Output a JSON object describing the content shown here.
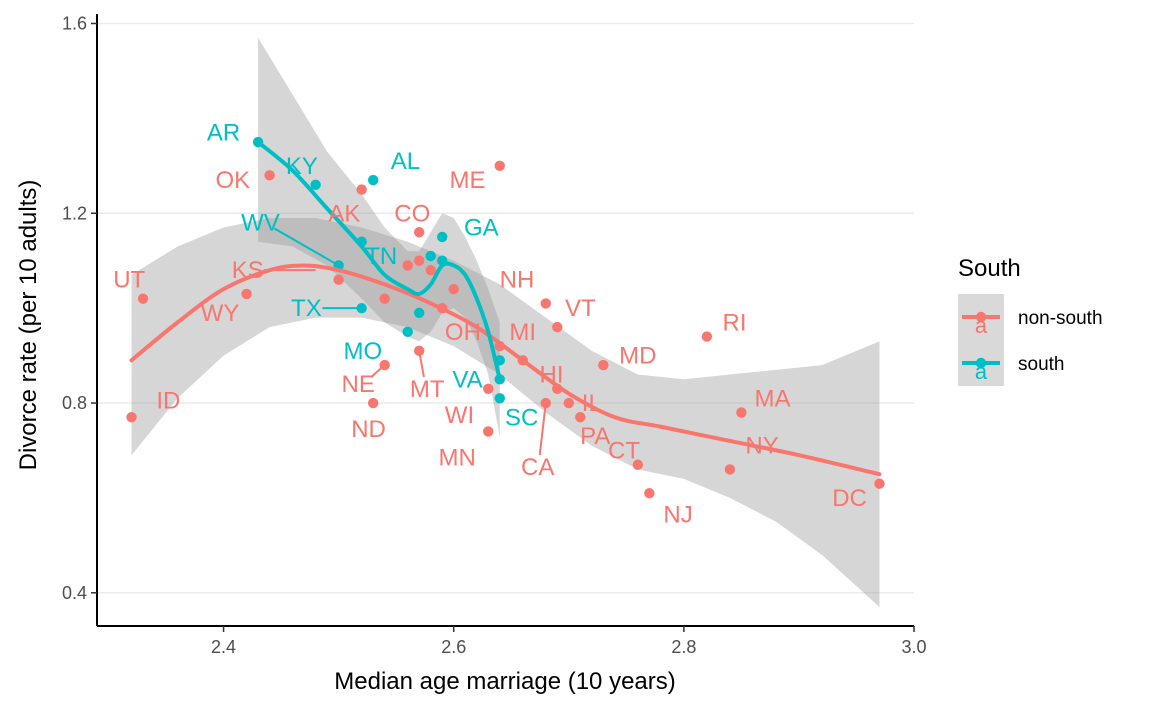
{
  "chart_data": {
    "type": "scatter",
    "title": "",
    "xlabel": "Median age marriage (10 years)",
    "ylabel": "Divorce rate (per 10 adults)",
    "xlim": [
      2.29,
      3.0
    ],
    "ylim": [
      0.33,
      1.62
    ],
    "x_ticks": [
      2.4,
      2.6,
      2.8,
      3.0
    ],
    "x_tick_labels": [
      "2.4",
      "2.6",
      "2.8",
      "3.0"
    ],
    "y_ticks": [
      0.4,
      0.8,
      1.2,
      1.6
    ],
    "y_tick_labels": [
      "0.4",
      "0.8",
      "1.2",
      "1.6"
    ],
    "grid": "horizontal",
    "legend": {
      "title": "South",
      "placement": "right",
      "glyph_text": "a",
      "entries": [
        {
          "label": "non-south",
          "color": "#F8766D"
        },
        {
          "label": "south",
          "color": "#00BFC4"
        }
      ]
    },
    "series": [
      {
        "name": "non-south",
        "color": "#F8766D",
        "points": [
          {
            "x": 2.32,
            "y": 0.77
          },
          {
            "x": 2.33,
            "y": 1.02
          },
          {
            "x": 2.42,
            "y": 1.03
          },
          {
            "x": 2.44,
            "y": 1.28
          },
          {
            "x": 2.5,
            "y": 1.06
          },
          {
            "x": 2.52,
            "y": 1.25
          },
          {
            "x": 2.53,
            "y": 0.8
          },
          {
            "x": 2.54,
            "y": 0.88
          },
          {
            "x": 2.54,
            "y": 1.02
          },
          {
            "x": 2.56,
            "y": 1.09
          },
          {
            "x": 2.57,
            "y": 1.16
          },
          {
            "x": 2.57,
            "y": 1.1
          },
          {
            "x": 2.57,
            "y": 0.91
          },
          {
            "x": 2.58,
            "y": 1.08
          },
          {
            "x": 2.59,
            "y": 1.0
          },
          {
            "x": 2.6,
            "y": 1.04
          },
          {
            "x": 2.63,
            "y": 0.74
          },
          {
            "x": 2.63,
            "y": 0.83
          },
          {
            "x": 2.64,
            "y": 0.92
          },
          {
            "x": 2.64,
            "y": 1.3
          },
          {
            "x": 2.66,
            "y": 0.89
          },
          {
            "x": 2.68,
            "y": 1.01
          },
          {
            "x": 2.68,
            "y": 0.8
          },
          {
            "x": 2.69,
            "y": 0.96
          },
          {
            "x": 2.69,
            "y": 0.83
          },
          {
            "x": 2.7,
            "y": 0.8
          },
          {
            "x": 2.71,
            "y": 0.77
          },
          {
            "x": 2.73,
            "y": 0.88
          },
          {
            "x": 2.76,
            "y": 0.67
          },
          {
            "x": 2.77,
            "y": 0.61
          },
          {
            "x": 2.82,
            "y": 0.94
          },
          {
            "x": 2.84,
            "y": 0.66
          },
          {
            "x": 2.85,
            "y": 0.78
          },
          {
            "x": 2.97,
            "y": 0.63
          }
        ],
        "smooth": [
          {
            "x": 2.32,
            "y": 0.89
          },
          {
            "x": 2.36,
            "y": 0.97
          },
          {
            "x": 2.4,
            "y": 1.04
          },
          {
            "x": 2.44,
            "y": 1.08
          },
          {
            "x": 2.47,
            "y": 1.09
          },
          {
            "x": 2.5,
            "y": 1.08
          },
          {
            "x": 2.54,
            "y": 1.05
          },
          {
            "x": 2.58,
            "y": 1.01
          },
          {
            "x": 2.62,
            "y": 0.96
          },
          {
            "x": 2.66,
            "y": 0.89
          },
          {
            "x": 2.7,
            "y": 0.82
          },
          {
            "x": 2.74,
            "y": 0.77
          },
          {
            "x": 2.78,
            "y": 0.75
          },
          {
            "x": 2.84,
            "y": 0.72
          },
          {
            "x": 2.9,
            "y": 0.69
          },
          {
            "x": 2.97,
            "y": 0.65
          }
        ],
        "band_upper": [
          {
            "x": 2.32,
            "y": 1.07
          },
          {
            "x": 2.36,
            "y": 1.13
          },
          {
            "x": 2.4,
            "y": 1.17
          },
          {
            "x": 2.44,
            "y": 1.19
          },
          {
            "x": 2.48,
            "y": 1.19
          },
          {
            "x": 2.52,
            "y": 1.17
          },
          {
            "x": 2.56,
            "y": 1.14
          },
          {
            "x": 2.6,
            "y": 1.1
          },
          {
            "x": 2.64,
            "y": 1.05
          },
          {
            "x": 2.68,
            "y": 0.98
          },
          {
            "x": 2.72,
            "y": 0.91
          },
          {
            "x": 2.76,
            "y": 0.86
          },
          {
            "x": 2.8,
            "y": 0.85
          },
          {
            "x": 2.84,
            "y": 0.86
          },
          {
            "x": 2.88,
            "y": 0.87
          },
          {
            "x": 2.92,
            "y": 0.88
          },
          {
            "x": 2.97,
            "y": 0.93
          }
        ],
        "band_lower": [
          {
            "x": 2.32,
            "y": 0.69
          },
          {
            "x": 2.36,
            "y": 0.81
          },
          {
            "x": 2.4,
            "y": 0.9
          },
          {
            "x": 2.44,
            "y": 0.96
          },
          {
            "x": 2.48,
            "y": 0.98
          },
          {
            "x": 2.52,
            "y": 0.98
          },
          {
            "x": 2.56,
            "y": 0.96
          },
          {
            "x": 2.6,
            "y": 0.92
          },
          {
            "x": 2.64,
            "y": 0.86
          },
          {
            "x": 2.68,
            "y": 0.78
          },
          {
            "x": 2.72,
            "y": 0.71
          },
          {
            "x": 2.76,
            "y": 0.66
          },
          {
            "x": 2.8,
            "y": 0.64
          },
          {
            "x": 2.84,
            "y": 0.6
          },
          {
            "x": 2.88,
            "y": 0.55
          },
          {
            "x": 2.92,
            "y": 0.48
          },
          {
            "x": 2.97,
            "y": 0.37
          }
        ]
      },
      {
        "name": "south",
        "color": "#00BFC4",
        "points": [
          {
            "x": 2.43,
            "y": 1.35
          },
          {
            "x": 2.48,
            "y": 1.26
          },
          {
            "x": 2.5,
            "y": 1.09
          },
          {
            "x": 2.52,
            "y": 1.14
          },
          {
            "x": 2.52,
            "y": 1.0
          },
          {
            "x": 2.53,
            "y": 1.27
          },
          {
            "x": 2.56,
            "y": 0.95
          },
          {
            "x": 2.57,
            "y": 0.99
          },
          {
            "x": 2.58,
            "y": 1.11
          },
          {
            "x": 2.59,
            "y": 1.15
          },
          {
            "x": 2.59,
            "y": 1.1
          },
          {
            "x": 2.64,
            "y": 0.89
          },
          {
            "x": 2.64,
            "y": 0.85
          },
          {
            "x": 2.64,
            "y": 0.81
          }
        ],
        "smooth": [
          {
            "x": 2.43,
            "y": 1.35
          },
          {
            "x": 2.46,
            "y": 1.29
          },
          {
            "x": 2.49,
            "y": 1.21
          },
          {
            "x": 2.52,
            "y": 1.13
          },
          {
            "x": 2.54,
            "y": 1.07
          },
          {
            "x": 2.56,
            "y": 1.04
          },
          {
            "x": 2.57,
            "y": 1.03
          },
          {
            "x": 2.58,
            "y": 1.05
          },
          {
            "x": 2.59,
            "y": 1.09
          },
          {
            "x": 2.6,
            "y": 1.09
          },
          {
            "x": 2.61,
            "y": 1.07
          },
          {
            "x": 2.62,
            "y": 1.02
          },
          {
            "x": 2.63,
            "y": 0.95
          },
          {
            "x": 2.64,
            "y": 0.85
          }
        ],
        "band_upper": [
          {
            "x": 2.43,
            "y": 1.57
          },
          {
            "x": 2.46,
            "y": 1.45
          },
          {
            "x": 2.49,
            "y": 1.33
          },
          {
            "x": 2.52,
            "y": 1.24
          },
          {
            "x": 2.54,
            "y": 1.17
          },
          {
            "x": 2.56,
            "y": 1.12
          },
          {
            "x": 2.57,
            "y": 1.12
          },
          {
            "x": 2.58,
            "y": 1.16
          },
          {
            "x": 2.59,
            "y": 1.2
          },
          {
            "x": 2.6,
            "y": 1.19
          },
          {
            "x": 2.61,
            "y": 1.15
          },
          {
            "x": 2.62,
            "y": 1.1
          },
          {
            "x": 2.63,
            "y": 1.04
          },
          {
            "x": 2.64,
            "y": 0.97
          }
        ],
        "band_lower": [
          {
            "x": 2.43,
            "y": 1.14
          },
          {
            "x": 2.46,
            "y": 1.13
          },
          {
            "x": 2.49,
            "y": 1.09
          },
          {
            "x": 2.52,
            "y": 1.02
          },
          {
            "x": 2.54,
            "y": 0.97
          },
          {
            "x": 2.56,
            "y": 0.94
          },
          {
            "x": 2.57,
            "y": 0.93
          },
          {
            "x": 2.58,
            "y": 0.95
          },
          {
            "x": 2.59,
            "y": 0.99
          },
          {
            "x": 2.6,
            "y": 1.0
          },
          {
            "x": 2.61,
            "y": 0.98
          },
          {
            "x": 2.62,
            "y": 0.93
          },
          {
            "x": 2.63,
            "y": 0.86
          },
          {
            "x": 2.64,
            "y": 0.73
          }
        ]
      }
    ],
    "annotations": [
      {
        "text": "UT",
        "x": 2.318,
        "y": 1.06,
        "series": 0
      },
      {
        "text": "ID",
        "x": 2.352,
        "y": 0.805,
        "series": 0
      },
      {
        "text": "WY",
        "x": 2.397,
        "y": 0.99,
        "series": 0
      },
      {
        "text": "KS",
        "x": 2.421,
        "y": 1.08,
        "series": 0,
        "leader_to": {
          "x": 2.48,
          "y": 1.08
        }
      },
      {
        "text": "OK",
        "x": 2.408,
        "y": 1.27,
        "series": 0
      },
      {
        "text": "AK",
        "x": 2.505,
        "y": 1.2,
        "series": 0
      },
      {
        "text": "CO",
        "x": 2.564,
        "y": 1.2,
        "series": 0
      },
      {
        "text": "ND",
        "x": 2.526,
        "y": 0.745,
        "series": 0
      },
      {
        "text": "NE",
        "x": 2.517,
        "y": 0.84,
        "series": 0,
        "leader_to": {
          "x": 2.54,
          "y": 0.88
        }
      },
      {
        "text": "MT",
        "x": 2.577,
        "y": 0.83,
        "series": 0,
        "leader_to": {
          "x": 2.57,
          "y": 0.91
        }
      },
      {
        "text": "ME",
        "x": 2.612,
        "y": 1.27,
        "series": 0
      },
      {
        "text": "NH",
        "x": 2.655,
        "y": 1.06,
        "series": 0
      },
      {
        "text": "VT",
        "x": 2.71,
        "y": 1.0,
        "series": 0
      },
      {
        "text": "OH",
        "x": 2.608,
        "y": 0.95,
        "series": 0
      },
      {
        "text": "MI",
        "x": 2.66,
        "y": 0.95,
        "series": 0
      },
      {
        "text": "HI",
        "x": 2.685,
        "y": 0.86,
        "series": 0
      },
      {
        "text": "IL",
        "x": 2.72,
        "y": 0.8,
        "series": 0
      },
      {
        "text": "WI",
        "x": 2.605,
        "y": 0.775,
        "series": 0
      },
      {
        "text": "MN",
        "x": 2.603,
        "y": 0.685,
        "series": 0
      },
      {
        "text": "CA",
        "x": 2.673,
        "y": 0.665,
        "series": 0,
        "leader_to": {
          "x": 2.68,
          "y": 0.8
        }
      },
      {
        "text": "PA",
        "x": 2.723,
        "y": 0.73,
        "series": 0
      },
      {
        "text": "CT",
        "x": 2.748,
        "y": 0.7,
        "series": 0
      },
      {
        "text": "MD",
        "x": 2.76,
        "y": 0.9,
        "series": 0
      },
      {
        "text": "RI",
        "x": 2.844,
        "y": 0.97,
        "series": 0
      },
      {
        "text": "MA",
        "x": 2.877,
        "y": 0.81,
        "series": 0
      },
      {
        "text": "NY",
        "x": 2.868,
        "y": 0.71,
        "series": 0
      },
      {
        "text": "NJ",
        "x": 2.795,
        "y": 0.565,
        "series": 0
      },
      {
        "text": "DC",
        "x": 2.944,
        "y": 0.6,
        "series": 0
      },
      {
        "text": "AR",
        "x": 2.4,
        "y": 1.37,
        "series": 1
      },
      {
        "text": "KY",
        "x": 2.468,
        "y": 1.3,
        "series": 1
      },
      {
        "text": "AL",
        "x": 2.558,
        "y": 1.31,
        "series": 1
      },
      {
        "text": "WV",
        "x": 2.432,
        "y": 1.18,
        "series": 1,
        "leader_to": {
          "x": 2.5,
          "y": 1.09
        }
      },
      {
        "text": "TN",
        "x": 2.537,
        "y": 1.11,
        "series": 1
      },
      {
        "text": "GA",
        "x": 2.624,
        "y": 1.17,
        "series": 1
      },
      {
        "text": "TX",
        "x": 2.472,
        "y": 1.0,
        "series": 1,
        "leader_to": {
          "x": 2.52,
          "y": 1.0
        }
      },
      {
        "text": "MO",
        "x": 2.521,
        "y": 0.91,
        "series": 1
      },
      {
        "text": "VA",
        "x": 2.612,
        "y": 0.85,
        "series": 1
      },
      {
        "text": "SC",
        "x": 2.659,
        "y": 0.77,
        "series": 1
      }
    ]
  }
}
